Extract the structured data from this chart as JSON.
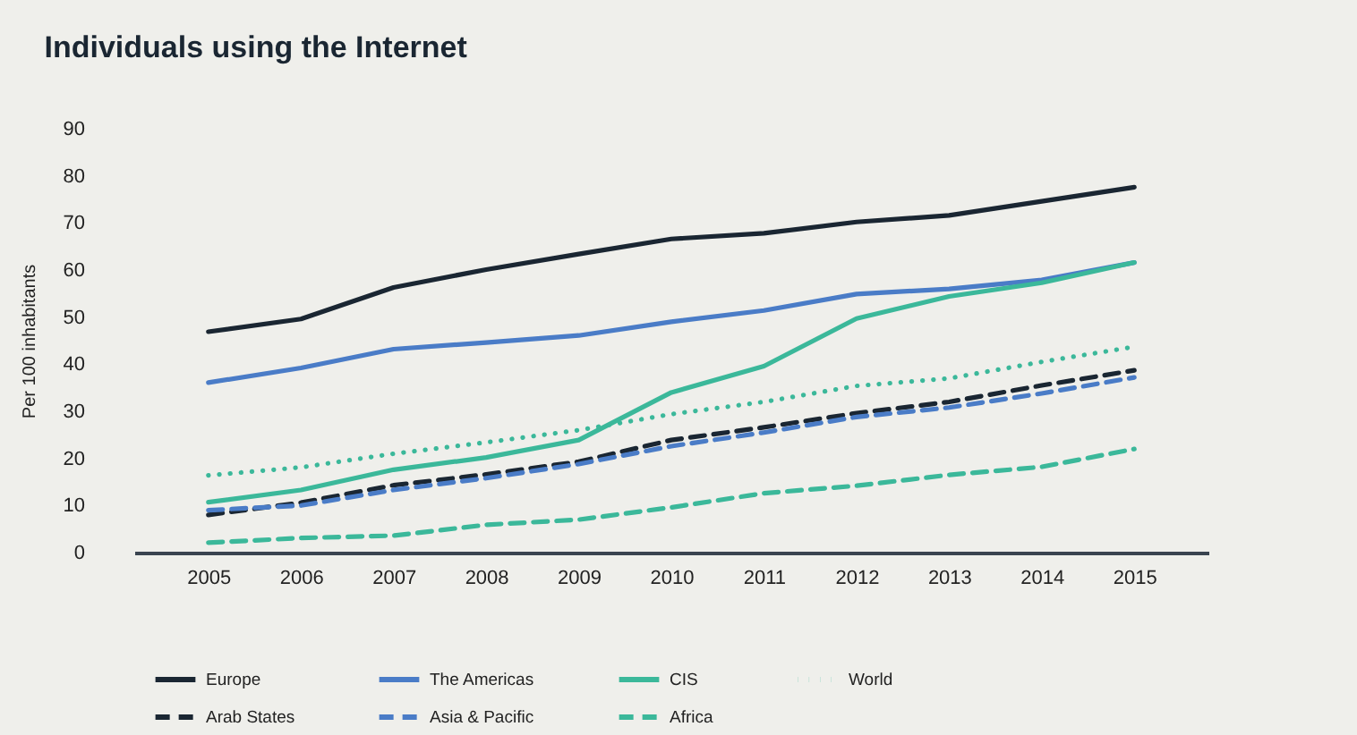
{
  "chart_data": {
    "type": "line",
    "title": "Individuals using the Internet",
    "ylabel": "Per 100 inhabitants",
    "categories": [
      "2005",
      "2006",
      "2007",
      "2008",
      "2009",
      "2010",
      "2011",
      "2012",
      "2013",
      "2014",
      "2015"
    ],
    "ylim": [
      0,
      90
    ],
    "yticks": [
      0,
      10,
      20,
      30,
      40,
      50,
      60,
      70,
      80,
      90
    ],
    "grid": false,
    "legend": "bottom",
    "marker": "none",
    "series": [
      {
        "name": "Europe",
        "color": "#1a2632",
        "line_style": "solid",
        "values": [
          46.9,
          49.6,
          56.3,
          60.1,
          63.4,
          66.6,
          67.8,
          70.2,
          71.6,
          74.6,
          77.6
        ]
      },
      {
        "name": "The Americas",
        "color": "#4a7cc7",
        "line_style": "solid",
        "values": [
          36.1,
          39.2,
          43.2,
          44.6,
          46.1,
          49.0,
          51.4,
          54.9,
          56.0,
          57.9,
          61.6
        ]
      },
      {
        "name": "CIS",
        "color": "#3bb89a",
        "line_style": "solid",
        "values": [
          10.7,
          13.3,
          17.6,
          20.2,
          23.9,
          34.0,
          39.6,
          49.7,
          54.4,
          57.3,
          61.6
        ]
      },
      {
        "name": "World",
        "color": "#3bb89a",
        "line_style": "dotted",
        "values": [
          16.4,
          18.1,
          21.0,
          23.4,
          26.0,
          29.4,
          32.0,
          35.4,
          37.0,
          40.5,
          43.7
        ]
      },
      {
        "name": "Arab States",
        "color": "#1a2632",
        "line_style": "dashed",
        "values": [
          8.0,
          10.6,
          14.3,
          16.6,
          19.3,
          23.9,
          26.6,
          29.6,
          32.0,
          35.5,
          38.7
        ]
      },
      {
        "name": "Asia & Pacific",
        "color": "#4a7cc7",
        "line_style": "dashed",
        "values": [
          9.0,
          10.0,
          13.3,
          15.8,
          18.8,
          22.6,
          25.5,
          28.8,
          30.8,
          33.8,
          37.2
        ]
      },
      {
        "name": "Africa",
        "color": "#3bb89a",
        "line_style": "dashed",
        "values": [
          2.1,
          3.1,
          3.6,
          5.9,
          7.0,
          9.6,
          12.6,
          14.2,
          16.5,
          18.2,
          22.0
        ]
      }
    ]
  }
}
